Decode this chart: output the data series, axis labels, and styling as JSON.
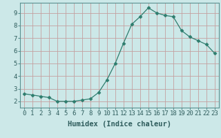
{
  "x": [
    0,
    1,
    2,
    3,
    4,
    5,
    6,
    7,
    8,
    9,
    10,
    11,
    12,
    13,
    14,
    15,
    16,
    17,
    18,
    19,
    20,
    21,
    22,
    23
  ],
  "y": [
    2.6,
    2.5,
    2.4,
    2.3,
    2.0,
    2.0,
    2.0,
    2.1,
    2.2,
    2.7,
    3.7,
    5.0,
    6.6,
    8.1,
    8.7,
    9.4,
    9.0,
    8.8,
    8.7,
    7.6,
    7.1,
    6.8,
    6.5,
    5.8
  ],
  "line_color": "#2e7d6e",
  "marker": "D",
  "marker_size": 2.5,
  "background_color": "#cce8e8",
  "grid_color_major": "#b0d0d0",
  "grid_color_minor": "#b0d0d0",
  "plot_bg_color": "#cce8e8",
  "xlabel": "Humidex (Indice chaleur)",
  "xlim": [
    -0.5,
    23.5
  ],
  "ylim": [
    1.5,
    9.8
  ],
  "yticks": [
    2,
    3,
    4,
    5,
    6,
    7,
    8,
    9
  ],
  "xticks": [
    0,
    1,
    2,
    3,
    4,
    5,
    6,
    7,
    8,
    9,
    10,
    11,
    12,
    13,
    14,
    15,
    16,
    17,
    18,
    19,
    20,
    21,
    22,
    23
  ],
  "xlabel_fontsize": 7.5,
  "tick_fontsize": 6.5,
  "spine_color": "#5a9090"
}
